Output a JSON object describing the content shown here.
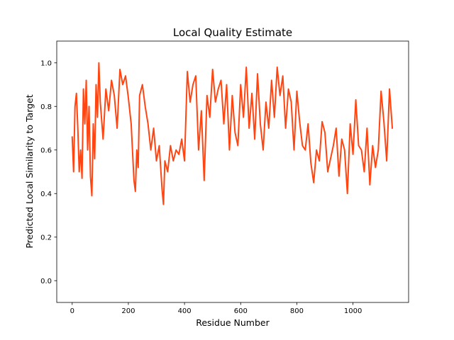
{
  "chart_data": {
    "type": "line",
    "title": "Local Quality Estimate",
    "xlabel": "Residue Number",
    "ylabel": "Predicted Local Similarity to Target",
    "xlim": [
      -55,
      1198
    ],
    "ylim": [
      -0.1,
      1.1
    ],
    "xticks": [
      0,
      200,
      400,
      600,
      800,
      1000
    ],
    "yticks": [
      0.0,
      0.2,
      0.4,
      0.6,
      0.8,
      1.0
    ],
    "xtick_labels": [
      "0",
      "200",
      "400",
      "600",
      "800",
      "1000"
    ],
    "ytick_labels": [
      "0.0",
      "0.2",
      "0.4",
      "0.6",
      "0.8",
      "1.0"
    ],
    "grid": false,
    "line_color": "#ff4512",
    "series": [
      {
        "x": [
          0,
          5,
          10,
          15,
          20,
          25,
          30,
          35,
          40,
          45,
          50,
          55,
          60,
          65,
          70,
          75,
          80,
          85,
          90,
          95,
          100,
          110,
          120,
          130,
          140,
          150,
          160,
          170,
          180,
          190,
          200,
          210,
          220,
          225,
          230,
          235,
          240,
          250,
          260,
          270,
          280,
          290,
          300,
          310,
          320,
          325,
          330,
          340,
          350,
          360,
          370,
          380,
          390,
          400,
          410,
          420,
          430,
          440,
          450,
          460,
          470,
          480,
          490,
          500,
          510,
          520,
          530,
          540,
          550,
          560,
          570,
          580,
          590,
          600,
          610,
          620,
          630,
          640,
          650,
          660,
          670,
          680,
          690,
          700,
          710,
          720,
          730,
          740,
          750,
          760,
          770,
          780,
          790,
          800,
          810,
          820,
          830,
          840,
          850,
          860,
          870,
          880,
          890,
          900,
          910,
          920,
          930,
          940,
          950,
          960,
          970,
          980,
          990,
          1000,
          1010,
          1020,
          1030,
          1040,
          1050,
          1060,
          1070,
          1080,
          1090,
          1100,
          1110,
          1120,
          1130,
          1140
        ],
        "y": [
          0.66,
          0.5,
          0.8,
          0.86,
          0.7,
          0.5,
          0.6,
          0.47,
          0.88,
          0.72,
          0.92,
          0.6,
          0.8,
          0.48,
          0.39,
          0.72,
          0.56,
          0.9,
          0.75,
          1.0,
          0.82,
          0.65,
          0.88,
          0.78,
          0.92,
          0.85,
          0.7,
          0.97,
          0.9,
          0.94,
          0.84,
          0.72,
          0.46,
          0.41,
          0.6,
          0.52,
          0.85,
          0.9,
          0.8,
          0.72,
          0.6,
          0.7,
          0.55,
          0.62,
          0.42,
          0.35,
          0.55,
          0.5,
          0.62,
          0.55,
          0.6,
          0.58,
          0.65,
          0.55,
          0.96,
          0.82,
          0.9,
          0.94,
          0.6,
          0.78,
          0.46,
          0.85,
          0.75,
          0.97,
          0.82,
          0.88,
          0.92,
          0.72,
          0.9,
          0.6,
          0.85,
          0.68,
          0.62,
          0.9,
          0.75,
          0.98,
          0.7,
          0.86,
          0.65,
          0.95,
          0.72,
          0.6,
          0.82,
          0.7,
          0.92,
          0.75,
          0.98,
          0.85,
          0.94,
          0.7,
          0.88,
          0.82,
          0.6,
          0.87,
          0.73,
          0.62,
          0.6,
          0.72,
          0.54,
          0.45,
          0.6,
          0.55,
          0.73,
          0.68,
          0.5,
          0.56,
          0.62,
          0.7,
          0.48,
          0.65,
          0.6,
          0.4,
          0.72,
          0.58,
          0.83,
          0.62,
          0.6,
          0.5,
          0.7,
          0.44,
          0.62,
          0.52,
          0.6,
          0.87,
          0.73,
          0.55,
          0.88,
          0.7
        ]
      }
    ]
  }
}
